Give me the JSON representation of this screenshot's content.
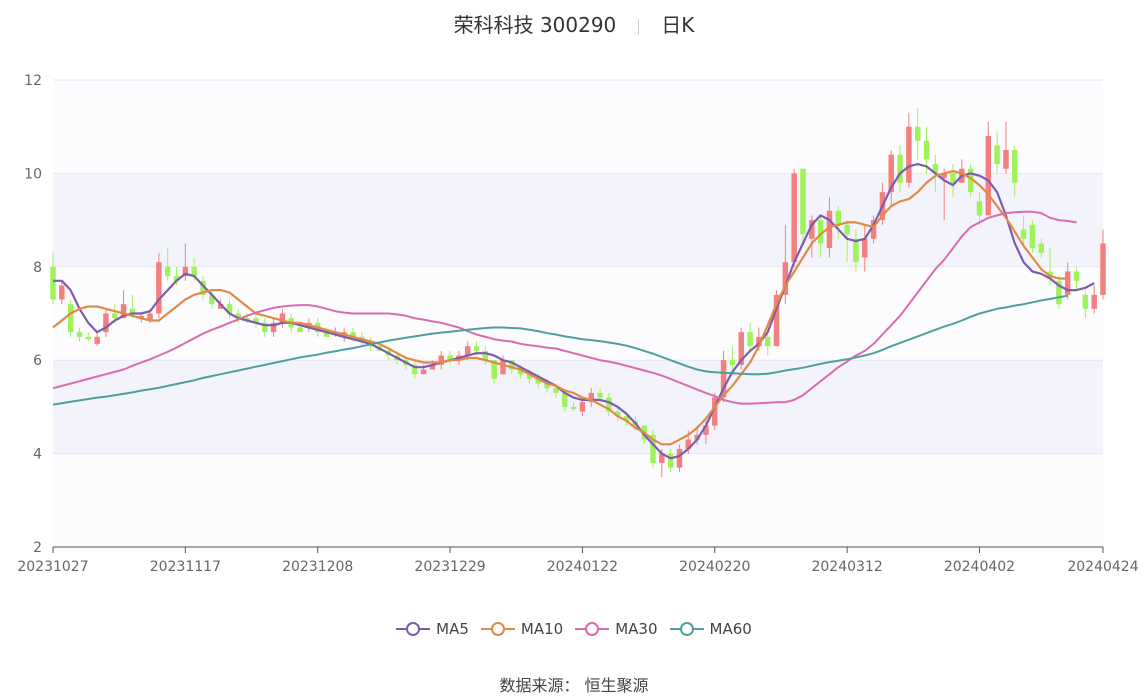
{
  "header": {
    "name_code": "荣科科技 300290",
    "period": "日K"
  },
  "source": "数据来源： 恒生聚源",
  "colors": {
    "up": "#f47f7f",
    "down": "#9ef25a",
    "MA5": "#7c5cac",
    "MA10": "#e08b45",
    "MA30": "#d96bb0",
    "MA60": "#4f9f9f",
    "band": "#f3f4fb",
    "grid": "#e4e6f2"
  },
  "chart_data": {
    "type": "candlestick",
    "title": "荣科科技 300290 日K",
    "ylim": [
      2,
      12
    ],
    "yticks": [
      "2",
      "4",
      "6",
      "8",
      "10",
      "12"
    ],
    "xticks": [
      "20231027",
      "20231117",
      "20231208",
      "20231229",
      "20240122",
      "20240220",
      "20240312",
      "20240402",
      "20240424"
    ],
    "grid": true,
    "legend_position": "bottom",
    "legend": [
      "MA5",
      "MA10",
      "MA30",
      "MA60"
    ],
    "candles": [
      [
        "20231027",
        8.0,
        7.3,
        8.3,
        7.2
      ],
      [
        "20231030",
        7.3,
        7.6,
        7.7,
        7.2
      ],
      [
        "20231031",
        7.2,
        6.6,
        7.3,
        6.5
      ],
      [
        "20231101",
        6.6,
        6.5,
        6.7,
        6.4
      ],
      [
        "20231102",
        6.5,
        6.45,
        6.6,
        6.4
      ],
      [
        "20231103",
        6.35,
        6.5,
        6.6,
        6.3
      ],
      [
        "20231106",
        6.6,
        7.0,
        7.1,
        6.5
      ],
      [
        "20231107",
        7.0,
        6.9,
        7.2,
        6.8
      ],
      [
        "20231108",
        6.9,
        7.2,
        7.5,
        6.9
      ],
      [
        "20231109",
        7.1,
        7.0,
        7.4,
        6.9
      ],
      [
        "20231110",
        6.9,
        6.95,
        7.0,
        6.8
      ],
      [
        "20231113",
        6.85,
        7.0,
        7.1,
        6.8
      ],
      [
        "20231114",
        7.0,
        8.1,
        8.3,
        6.9
      ],
      [
        "20231115",
        8.0,
        7.8,
        8.4,
        7.7
      ],
      [
        "20231116",
        7.8,
        7.7,
        8.0,
        7.6
      ],
      [
        "20231117",
        7.8,
        8.0,
        8.5,
        7.7
      ],
      [
        "20231120",
        8.0,
        7.8,
        8.2,
        7.7
      ],
      [
        "20231121",
        7.7,
        7.4,
        7.8,
        7.3
      ],
      [
        "20231122",
        7.4,
        7.2,
        7.5,
        7.1
      ],
      [
        "20231123",
        7.1,
        7.2,
        7.3,
        7.1
      ],
      [
        "20231124",
        7.2,
        7.0,
        7.3,
        6.9
      ],
      [
        "20231127",
        7.0,
        6.9,
        7.1,
        6.8
      ],
      [
        "20231128",
        6.9,
        6.85,
        7.0,
        6.8
      ],
      [
        "20231129",
        6.9,
        6.8,
        7.0,
        6.7
      ],
      [
        "20231130",
        6.8,
        6.6,
        6.9,
        6.5
      ],
      [
        "20231201",
        6.6,
        6.8,
        6.9,
        6.5
      ],
      [
        "20231204",
        6.8,
        7.0,
        7.1,
        6.7
      ],
      [
        "20231205",
        6.9,
        6.7,
        7.0,
        6.6
      ],
      [
        "20231206",
        6.7,
        6.6,
        6.8,
        6.6
      ],
      [
        "20231207",
        6.7,
        6.8,
        6.9,
        6.6
      ],
      [
        "20231208",
        6.8,
        6.6,
        6.9,
        6.5
      ],
      [
        "20231211",
        6.6,
        6.5,
        6.7,
        6.5
      ],
      [
        "20231212",
        6.6,
        6.6,
        6.7,
        6.5
      ],
      [
        "20231213",
        6.5,
        6.6,
        6.7,
        6.4
      ],
      [
        "20231214",
        6.6,
        6.5,
        6.7,
        6.4
      ],
      [
        "20231215",
        6.5,
        6.4,
        6.6,
        6.3
      ],
      [
        "20231218",
        6.4,
        6.3,
        6.5,
        6.2
      ],
      [
        "20231219",
        6.3,
        6.2,
        6.4,
        6.2
      ],
      [
        "20231220",
        6.2,
        6.1,
        6.3,
        6.0
      ],
      [
        "20231221",
        6.1,
        6.0,
        6.2,
        5.9
      ],
      [
        "20231222",
        6.0,
        5.9,
        6.1,
        5.8
      ],
      [
        "20231225",
        5.9,
        5.7,
        6.0,
        5.6
      ],
      [
        "20231226",
        5.7,
        5.8,
        5.9,
        5.7
      ],
      [
        "20231227",
        5.8,
        5.9,
        6.0,
        5.8
      ],
      [
        "20231228",
        5.9,
        6.1,
        6.2,
        5.8
      ],
      [
        "20231229",
        6.1,
        6.0,
        6.2,
        5.9
      ],
      [
        "20240102",
        6.0,
        6.1,
        6.2,
        5.9
      ],
      [
        "20240103",
        6.1,
        6.3,
        6.4,
        6.0
      ],
      [
        "20240104",
        6.3,
        6.2,
        6.4,
        6.1
      ],
      [
        "20240105",
        6.2,
        6.0,
        6.3,
        5.9
      ],
      [
        "20240108",
        6.0,
        5.6,
        6.0,
        5.5
      ],
      [
        "20240109",
        5.7,
        6.0,
        6.1,
        5.7
      ],
      [
        "20240110",
        6.0,
        5.8,
        6.0,
        5.7
      ],
      [
        "20240111",
        5.8,
        5.7,
        5.9,
        5.6
      ],
      [
        "20240112",
        5.7,
        5.6,
        5.8,
        5.5
      ],
      [
        "20240115",
        5.6,
        5.5,
        5.7,
        5.4
      ],
      [
        "20240116",
        5.5,
        5.4,
        5.6,
        5.3
      ],
      [
        "20240117",
        5.4,
        5.3,
        5.5,
        5.2
      ],
      [
        "20240118",
        5.3,
        5.0,
        5.3,
        4.9
      ],
      [
        "20240119",
        5.0,
        4.95,
        5.1,
        4.9
      ],
      [
        "20240122",
        4.9,
        5.1,
        5.2,
        4.8
      ],
      [
        "20240123",
        5.1,
        5.3,
        5.4,
        5.0
      ],
      [
        "20240124",
        5.3,
        5.2,
        5.4,
        5.1
      ],
      [
        "20240125",
        5.2,
        4.9,
        5.3,
        4.8
      ],
      [
        "20240126",
        4.9,
        4.8,
        5.0,
        4.7
      ],
      [
        "20240129",
        4.8,
        4.7,
        4.9,
        4.6
      ],
      [
        "20240130",
        4.7,
        4.6,
        4.8,
        4.5
      ],
      [
        "20240131",
        4.6,
        4.3,
        4.6,
        4.2
      ],
      [
        "20240201",
        4.4,
        3.8,
        4.5,
        3.7
      ],
      [
        "20240202",
        3.8,
        4.0,
        4.1,
        3.5
      ],
      [
        "20240205",
        4.0,
        3.7,
        4.1,
        3.6
      ],
      [
        "20240206",
        3.7,
        4.1,
        4.2,
        3.6
      ],
      [
        "20240207",
        4.1,
        4.3,
        4.5,
        4.0
      ],
      [
        "20240208",
        4.3,
        4.4,
        4.6,
        4.2
      ],
      [
        "20240219",
        4.4,
        4.6,
        4.7,
        4.2
      ],
      [
        "20240220",
        4.6,
        5.2,
        5.3,
        4.5
      ],
      [
        "20240221",
        5.2,
        6.0,
        6.2,
        5.1
      ],
      [
        "20240222",
        6.0,
        5.9,
        6.3,
        5.7
      ],
      [
        "20240223",
        5.9,
        6.6,
        6.7,
        5.8
      ],
      [
        "20240226",
        6.6,
        6.3,
        6.8,
        6.2
      ],
      [
        "20240227",
        6.3,
        6.5,
        6.7,
        6.2
      ],
      [
        "20240228",
        6.5,
        6.3,
        6.6,
        6.1
      ],
      [
        "20240229",
        6.3,
        7.4,
        7.5,
        6.3
      ],
      [
        "20240301",
        7.4,
        8.1,
        8.9,
        7.2
      ],
      [
        "20240304",
        8.1,
        10.0,
        10.1,
        8.0
      ],
      [
        "20240305",
        10.1,
        8.7,
        10.1,
        8.5
      ],
      [
        "20240306",
        8.6,
        9.0,
        9.1,
        8.2
      ],
      [
        "20240307",
        9.0,
        8.5,
        9.1,
        8.2
      ],
      [
        "20240308",
        8.4,
        9.2,
        9.5,
        8.2
      ],
      [
        "20240311",
        9.2,
        8.9,
        9.3,
        8.6
      ],
      [
        "20240312",
        8.9,
        8.7,
        9.0,
        8.1
      ],
      [
        "20240313",
        8.6,
        8.1,
        8.8,
        7.9
      ],
      [
        "20240314",
        8.2,
        8.6,
        8.9,
        7.9
      ],
      [
        "20240315",
        8.6,
        9.0,
        9.1,
        8.5
      ],
      [
        "20240318",
        9.0,
        9.6,
        9.8,
        8.9
      ],
      [
        "20240319",
        9.6,
        10.4,
        10.5,
        9.3
      ],
      [
        "20240320",
        10.4,
        9.8,
        10.6,
        9.6
      ],
      [
        "20240321",
        9.8,
        11.0,
        11.3,
        9.7
      ],
      [
        "20240322",
        11.0,
        10.7,
        11.4,
        10.3
      ],
      [
        "20240325",
        10.7,
        10.3,
        11.0,
        10.0
      ],
      [
        "20240326",
        10.2,
        10.0,
        10.4,
        9.6
      ],
      [
        "20240327",
        9.9,
        10.0,
        10.1,
        9.0
      ],
      [
        "20240328",
        10.0,
        9.8,
        10.2,
        9.5
      ],
      [
        "20240329",
        9.8,
        10.1,
        10.3,
        9.8
      ],
      [
        "20240401",
        10.1,
        9.6,
        10.2,
        9.5
      ],
      [
        "20240402",
        9.4,
        9.1,
        9.6,
        8.9
      ],
      [
        "20240403",
        9.1,
        10.8,
        11.1,
        9.6
      ],
      [
        "20240408",
        10.6,
        10.2,
        10.9,
        10.0
      ],
      [
        "20240409",
        10.1,
        10.5,
        11.1,
        10.0
      ],
      [
        "20240410",
        10.5,
        9.8,
        10.6,
        9.5
      ],
      [
        "20240411",
        8.8,
        8.6,
        9.1,
        8.4
      ],
      [
        "20240412",
        8.9,
        8.4,
        9.0,
        8.3
      ],
      [
        "20240415",
        8.5,
        8.3,
        8.6,
        8.2
      ],
      [
        "20240416",
        7.9,
        7.8,
        8.4,
        7.6
      ],
      [
        "20240417",
        7.7,
        7.2,
        7.8,
        7.1
      ],
      [
        "20240418",
        7.4,
        7.9,
        8.1,
        7.3
      ],
      [
        "20240419",
        7.9,
        7.7,
        8.0,
        7.5
      ],
      [
        "20240422",
        7.4,
        7.1,
        7.5,
        6.9
      ],
      [
        "20240423",
        7.1,
        7.4,
        7.6,
        7.0
      ],
      [
        "20240424",
        7.4,
        8.5,
        8.8,
        7.3
      ]
    ],
    "series": [
      {
        "name": "MA5",
        "values": [
          7.7,
          7.7,
          7.5,
          7.1,
          6.8,
          6.6,
          6.7,
          6.85,
          6.95,
          7.0,
          7.0,
          7.05,
          7.3,
          7.5,
          7.7,
          7.85,
          7.8,
          7.6,
          7.4,
          7.2,
          7.0,
          6.9,
          6.85,
          6.8,
          6.75,
          6.75,
          6.8,
          6.8,
          6.75,
          6.7,
          6.65,
          6.6,
          6.55,
          6.5,
          6.45,
          6.4,
          6.35,
          6.25,
          6.15,
          6.05,
          5.95,
          5.85,
          5.85,
          5.9,
          5.95,
          6.0,
          6.05,
          6.1,
          6.15,
          6.15,
          6.1,
          6.0,
          5.95,
          5.85,
          5.75,
          5.65,
          5.55,
          5.45,
          5.3,
          5.2,
          5.15,
          5.15,
          5.15,
          5.1,
          5.0,
          4.85,
          4.65,
          4.4,
          4.2,
          4.0,
          3.9,
          3.95,
          4.1,
          4.3,
          4.6,
          5.0,
          5.4,
          5.75,
          6.0,
          6.2,
          6.35,
          6.6,
          7.1,
          7.6,
          8.1,
          8.5,
          8.9,
          9.1,
          9.0,
          8.8,
          8.6,
          8.55,
          8.6,
          8.9,
          9.3,
          9.7,
          10.0,
          10.15,
          10.2,
          10.15,
          10.0,
          9.85,
          9.75,
          9.95,
          10.0,
          9.95,
          9.85,
          9.6,
          9.1,
          8.5,
          8.1,
          7.9,
          7.85,
          7.75,
          7.6,
          7.5,
          7.5,
          7.55,
          7.65
        ]
      },
      {
        "name": "MA10",
        "values": [
          6.7,
          6.85,
          7.0,
          7.1,
          7.15,
          7.15,
          7.1,
          7.05,
          7.0,
          6.95,
          6.9,
          6.85,
          6.85,
          7.0,
          7.15,
          7.3,
          7.4,
          7.45,
          7.5,
          7.5,
          7.45,
          7.3,
          7.15,
          7.0,
          6.95,
          6.9,
          6.85,
          6.8,
          6.8,
          6.75,
          6.7,
          6.65,
          6.6,
          6.55,
          6.5,
          6.45,
          6.4,
          6.35,
          6.25,
          6.15,
          6.05,
          6.0,
          5.95,
          5.95,
          5.95,
          6.0,
          6.0,
          6.05,
          6.05,
          6.0,
          5.95,
          5.9,
          5.85,
          5.8,
          5.7,
          5.6,
          5.5,
          5.45,
          5.35,
          5.3,
          5.2,
          5.15,
          5.05,
          4.95,
          4.8,
          4.7,
          4.55,
          4.45,
          4.3,
          4.2,
          4.2,
          4.3,
          4.4,
          4.55,
          4.75,
          5.0,
          5.25,
          5.45,
          5.7,
          5.95,
          6.3,
          6.75,
          7.2,
          7.6,
          7.9,
          8.2,
          8.5,
          8.7,
          8.85,
          8.9,
          8.95,
          8.95,
          8.9,
          8.85,
          9.1,
          9.3,
          9.4,
          9.45,
          9.6,
          9.8,
          9.95,
          10.0,
          10.05,
          10.0,
          9.9,
          9.75,
          9.55,
          9.3,
          9.05,
          8.75,
          8.45,
          8.2,
          7.95,
          7.8,
          7.75,
          7.75
        ]
      },
      {
        "name": "MA30",
        "values": [
          5.4,
          5.45,
          5.5,
          5.55,
          5.6,
          5.65,
          5.7,
          5.75,
          5.8,
          5.88,
          5.95,
          6.02,
          6.1,
          6.18,
          6.27,
          6.37,
          6.47,
          6.57,
          6.65,
          6.72,
          6.8,
          6.87,
          6.95,
          7.02,
          7.07,
          7.12,
          7.15,
          7.17,
          7.18,
          7.18,
          7.15,
          7.1,
          7.05,
          7.02,
          7.0,
          7.0,
          7.0,
          7.0,
          7.0,
          6.98,
          6.95,
          6.9,
          6.87,
          6.83,
          6.8,
          6.75,
          6.7,
          6.62,
          6.55,
          6.5,
          6.45,
          6.42,
          6.4,
          6.35,
          6.32,
          6.3,
          6.27,
          6.25,
          6.2,
          6.15,
          6.1,
          6.05,
          6.0,
          5.97,
          5.93,
          5.88,
          5.83,
          5.78,
          5.73,
          5.67,
          5.6,
          5.52,
          5.45,
          5.37,
          5.3,
          5.23,
          5.15,
          5.1,
          5.07,
          5.07,
          5.08,
          5.09,
          5.1,
          5.1,
          5.15,
          5.25,
          5.4,
          5.55,
          5.7,
          5.85,
          5.97,
          6.1,
          6.2,
          6.35,
          6.55,
          6.75,
          6.95,
          7.2,
          7.45,
          7.7,
          7.95,
          8.15,
          8.4,
          8.65,
          8.85,
          8.95,
          9.05,
          9.1,
          9.15,
          9.17,
          9.18,
          9.18,
          9.15,
          9.05,
          9.0,
          8.98,
          8.95
        ]
      },
      {
        "name": "MA60",
        "values": [
          5.05,
          5.08,
          5.11,
          5.14,
          5.17,
          5.2,
          5.22,
          5.25,
          5.28,
          5.31,
          5.35,
          5.38,
          5.41,
          5.45,
          5.49,
          5.53,
          5.57,
          5.62,
          5.66,
          5.7,
          5.74,
          5.78,
          5.82,
          5.86,
          5.9,
          5.94,
          5.98,
          6.02,
          6.06,
          6.09,
          6.12,
          6.16,
          6.19,
          6.23,
          6.26,
          6.3,
          6.34,
          6.38,
          6.42,
          6.45,
          6.48,
          6.51,
          6.54,
          6.57,
          6.59,
          6.61,
          6.63,
          6.65,
          6.67,
          6.69,
          6.7,
          6.7,
          6.69,
          6.68,
          6.65,
          6.62,
          6.58,
          6.55,
          6.51,
          6.48,
          6.45,
          6.43,
          6.41,
          6.38,
          6.35,
          6.31,
          6.26,
          6.2,
          6.14,
          6.07,
          6.0,
          5.93,
          5.86,
          5.8,
          5.76,
          5.74,
          5.73,
          5.72,
          5.71,
          5.7,
          5.7,
          5.71,
          5.74,
          5.78,
          5.81,
          5.84,
          5.88,
          5.92,
          5.96,
          5.99,
          6.02,
          6.06,
          6.1,
          6.15,
          6.22,
          6.3,
          6.37,
          6.44,
          6.51,
          6.58,
          6.65,
          6.72,
          6.78,
          6.85,
          6.93,
          7.0,
          7.05,
          7.1,
          7.13,
          7.17,
          7.2,
          7.24,
          7.28,
          7.31,
          7.35,
          7.38
        ]
      }
    ]
  }
}
